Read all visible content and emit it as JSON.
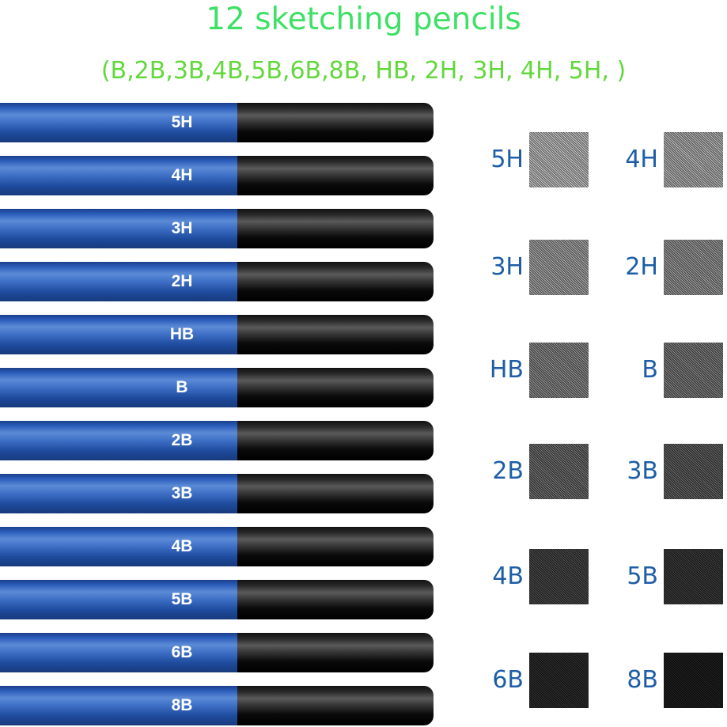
{
  "title": "12 sketching pencils",
  "subtitle": "(B,2B,3B,4B,5B,6B,8B, HB, 2H, 3H, 4H, 5H, )",
  "colors": {
    "title": "#3ee065",
    "subtitle": "#62d83c",
    "label": "#1d5ea6",
    "pencil_body": "#2a5bb8",
    "pencil_end": "#111111"
  },
  "pencils": [
    "5H",
    "4H",
    "3H",
    "2H",
    "HB",
    "B",
    "2B",
    "3B",
    "4B",
    "5B",
    "6B",
    "8B"
  ],
  "swatches": [
    [
      "5H",
      "4H"
    ],
    [
      "3H",
      "2H"
    ],
    [
      "HB",
      "B"
    ],
    [
      "2B",
      "3B"
    ],
    [
      "4B",
      "5B"
    ],
    [
      "6B",
      "8B"
    ]
  ]
}
